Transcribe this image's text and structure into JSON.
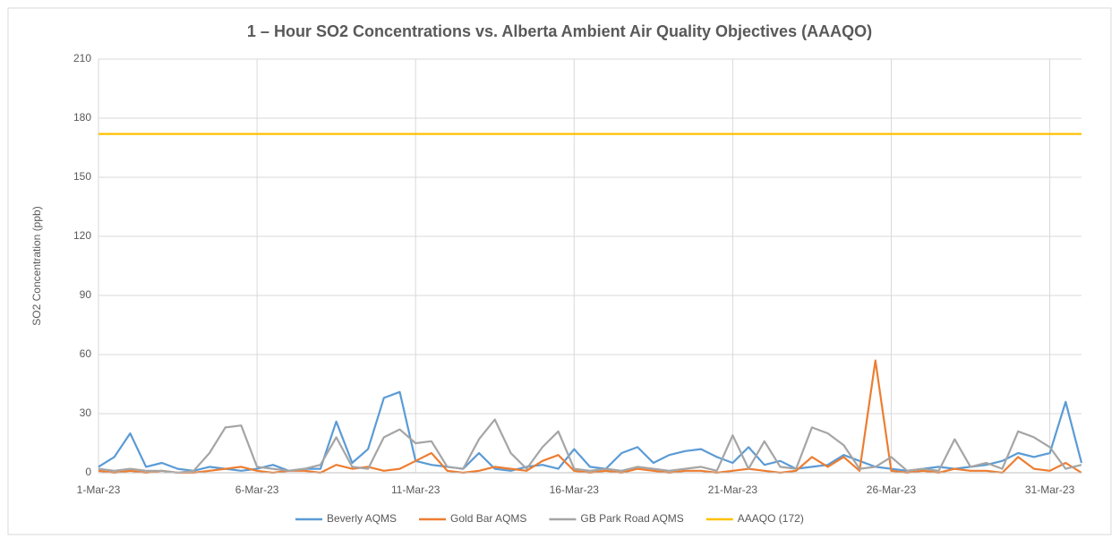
{
  "chart_data": {
    "type": "line",
    "title": "1 – Hour SO2 Concentrations vs. Alberta Ambient Air Quality Objectives (AAAQO)",
    "y_label": "SO2 Concentration (ppb)",
    "x": [
      0,
      0.5,
      1,
      1.5,
      2,
      2.5,
      3,
      3.5,
      4,
      4.5,
      5,
      5.5,
      6,
      6.5,
      7,
      7.5,
      8,
      8.5,
      9,
      9.5,
      10,
      10.5,
      11,
      11.5,
      12,
      12.5,
      13,
      13.5,
      14,
      14.5,
      15,
      15.5,
      16,
      16.5,
      17,
      17.5,
      18,
      18.5,
      19,
      19.5,
      20,
      20.5,
      21,
      21.5,
      22,
      22.5,
      23,
      23.5,
      24,
      24.5,
      25,
      25.5,
      26,
      26.5,
      27,
      27.5,
      28,
      28.5,
      29,
      29.5,
      30,
      30.5,
      31
    ],
    "series": [
      {
        "name": "Beverly AQMS",
        "color": "#5b9bd5",
        "values": [
          3,
          8,
          20,
          3,
          5,
          2,
          1,
          3,
          2,
          1,
          2,
          4,
          1,
          2,
          2,
          26,
          5,
          12,
          38,
          41,
          6,
          4,
          3,
          2,
          10,
          2,
          1,
          3,
          4,
          2,
          12,
          3,
          2,
          10,
          13,
          5,
          9,
          11,
          12,
          8,
          5,
          13,
          4,
          6,
          2,
          3,
          4,
          9,
          6,
          3,
          2,
          1,
          2,
          3,
          2,
          3,
          4,
          6,
          10,
          8,
          10,
          36,
          5
        ]
      },
      {
        "name": "Gold Bar AQMS",
        "color": "#ed7d31",
        "values": [
          1,
          0,
          1,
          0,
          1,
          0,
          0,
          1,
          2,
          3,
          1,
          0,
          1,
          1,
          0,
          4,
          2,
          3,
          1,
          2,
          6,
          10,
          1,
          0,
          1,
          3,
          2,
          1,
          6,
          9,
          1,
          0,
          1,
          0,
          2,
          1,
          0,
          1,
          1,
          0,
          1,
          2,
          1,
          0,
          1,
          8,
          3,
          8,
          1,
          57,
          1,
          0,
          1,
          0,
          2,
          1,
          1,
          0,
          8,
          2,
          1,
          5,
          0
        ]
      },
      {
        "name": "GB Park Road AQMS",
        "color": "#a5a5a5",
        "values": [
          2,
          1,
          2,
          1,
          1,
          0,
          1,
          10,
          23,
          24,
          3,
          2,
          1,
          2,
          4,
          18,
          3,
          2,
          18,
          22,
          15,
          16,
          3,
          2,
          17,
          27,
          10,
          2,
          13,
          21,
          2,
          1,
          2,
          1,
          3,
          2,
          1,
          2,
          3,
          1,
          19,
          2,
          16,
          3,
          2,
          23,
          20,
          14,
          2,
          3,
          8,
          1,
          2,
          1,
          17,
          3,
          5,
          2,
          21,
          18,
          13,
          2,
          4
        ]
      },
      {
        "name": "AAAQO (172)",
        "color": "#ffc000",
        "values": [
          172,
          172,
          172,
          172,
          172,
          172,
          172,
          172,
          172,
          172,
          172,
          172,
          172,
          172,
          172,
          172,
          172,
          172,
          172,
          172,
          172,
          172,
          172,
          172,
          172,
          172,
          172,
          172,
          172,
          172,
          172,
          172,
          172,
          172,
          172,
          172,
          172,
          172,
          172,
          172,
          172,
          172,
          172,
          172,
          172,
          172,
          172,
          172,
          172,
          172,
          172,
          172,
          172,
          172,
          172,
          172,
          172,
          172,
          172,
          172,
          172,
          172,
          172
        ]
      }
    ],
    "xlim": [
      0,
      31
    ],
    "xticks": [
      {
        "value": 0,
        "label": "1-Mar-23"
      },
      {
        "value": 5,
        "label": "6-Mar-23"
      },
      {
        "value": 10,
        "label": "11-Mar-23"
      },
      {
        "value": 15,
        "label": "16-Mar-23"
      },
      {
        "value": 20,
        "label": "21-Mar-23"
      },
      {
        "value": 25,
        "label": "26-Mar-23"
      },
      {
        "value": 30,
        "label": "31-Mar-23"
      }
    ],
    "ylim": [
      0,
      210
    ],
    "yticks": [
      0,
      30,
      60,
      90,
      120,
      150,
      180,
      210
    ],
    "grid": true,
    "legend": "bottom"
  }
}
